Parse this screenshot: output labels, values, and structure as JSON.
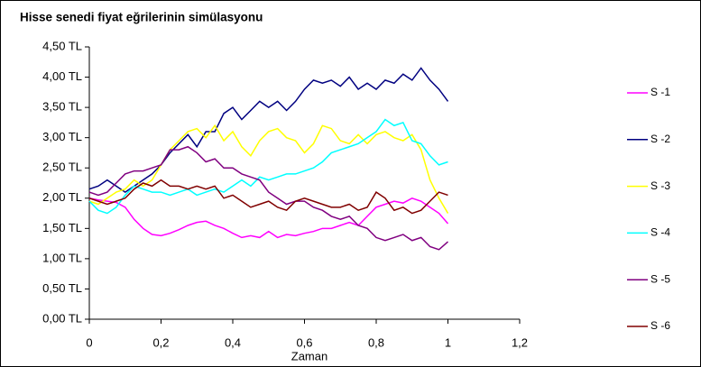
{
  "chart_data": {
    "type": "line",
    "title": "Hisse senedi fiyat eğrilerinin simülasyonu",
    "xlabel": "Zaman",
    "x": [
      0,
      0.025,
      0.05,
      0.075,
      0.1,
      0.125,
      0.15,
      0.175,
      0.2,
      0.225,
      0.25,
      0.275,
      0.3,
      0.325,
      0.35,
      0.375,
      0.4,
      0.425,
      0.45,
      0.475,
      0.5,
      0.525,
      0.55,
      0.575,
      0.6,
      0.625,
      0.65,
      0.675,
      0.7,
      0.725,
      0.75,
      0.775,
      0.8,
      0.825,
      0.85,
      0.875,
      0.9,
      0.925,
      0.95,
      0.975,
      1
    ],
    "series": [
      {
        "name": "S -1",
        "color": "#ff00ff",
        "values": [
          2.0,
          1.97,
          1.95,
          1.93,
          1.85,
          1.65,
          1.5,
          1.4,
          1.38,
          1.42,
          1.48,
          1.55,
          1.6,
          1.62,
          1.55,
          1.5,
          1.42,
          1.35,
          1.38,
          1.35,
          1.45,
          1.35,
          1.4,
          1.38,
          1.42,
          1.45,
          1.5,
          1.5,
          1.55,
          1.6,
          1.55,
          1.7,
          1.85,
          1.9,
          1.95,
          1.92,
          2.0,
          1.95,
          1.85,
          1.75,
          1.58
        ]
      },
      {
        "name": "S -2",
        "color": "#000080",
        "values": [
          2.15,
          2.2,
          2.3,
          2.2,
          2.1,
          2.2,
          2.3,
          2.4,
          2.55,
          2.75,
          2.9,
          3.05,
          2.85,
          3.1,
          3.1,
          3.4,
          3.5,
          3.3,
          3.45,
          3.6,
          3.5,
          3.6,
          3.45,
          3.6,
          3.8,
          3.95,
          3.9,
          3.95,
          3.85,
          4.0,
          3.8,
          3.9,
          3.8,
          3.95,
          3.9,
          4.05,
          3.95,
          4.15,
          3.95,
          3.8,
          3.6
        ]
      },
      {
        "name": "S -3",
        "color": "#ffff00",
        "values": [
          1.95,
          1.9,
          2.0,
          2.1,
          2.15,
          2.3,
          2.2,
          2.3,
          2.55,
          2.8,
          2.95,
          3.1,
          3.15,
          3.0,
          3.2,
          2.95,
          3.1,
          2.85,
          2.7,
          2.95,
          3.1,
          3.15,
          3.0,
          2.95,
          2.75,
          2.9,
          3.2,
          3.15,
          2.95,
          2.9,
          3.05,
          2.9,
          3.05,
          3.1,
          3.0,
          2.95,
          3.05,
          2.8,
          2.3,
          2.0,
          1.75
        ]
      },
      {
        "name": "S -4",
        "color": "#00ffff",
        "values": [
          1.95,
          1.8,
          1.75,
          1.85,
          2.05,
          2.2,
          2.15,
          2.1,
          2.1,
          2.05,
          2.1,
          2.15,
          2.05,
          2.1,
          2.15,
          2.1,
          2.2,
          2.3,
          2.2,
          2.35,
          2.3,
          2.35,
          2.4,
          2.4,
          2.45,
          2.5,
          2.6,
          2.75,
          2.8,
          2.85,
          2.9,
          3.0,
          3.1,
          3.3,
          3.2,
          3.25,
          2.95,
          2.9,
          2.7,
          2.55,
          2.6
        ]
      },
      {
        "name": "S -5",
        "color": "#800080",
        "values": [
          2.1,
          2.05,
          2.1,
          2.25,
          2.4,
          2.45,
          2.45,
          2.5,
          2.55,
          2.8,
          2.8,
          2.85,
          2.75,
          2.6,
          2.65,
          2.5,
          2.5,
          2.4,
          2.35,
          2.3,
          2.1,
          2.0,
          1.9,
          1.95,
          1.95,
          1.85,
          1.8,
          1.7,
          1.65,
          1.7,
          1.55,
          1.5,
          1.35,
          1.3,
          1.35,
          1.4,
          1.3,
          1.35,
          1.2,
          1.15,
          1.28
        ]
      },
      {
        "name": "S -6",
        "color": "#800000",
        "values": [
          2.0,
          1.95,
          1.9,
          1.95,
          2.0,
          2.15,
          2.25,
          2.2,
          2.3,
          2.2,
          2.2,
          2.15,
          2.2,
          2.15,
          2.2,
          2.0,
          2.05,
          1.95,
          1.85,
          1.9,
          1.95,
          1.85,
          1.8,
          1.95,
          2.0,
          1.95,
          1.9,
          1.85,
          1.85,
          1.9,
          1.8,
          1.85,
          2.1,
          2.0,
          1.8,
          1.85,
          1.75,
          1.8,
          1.95,
          2.1,
          2.05
        ]
      }
    ],
    "xlim": [
      0,
      1.2
    ],
    "xticks": [
      0,
      {
        "value": 0.2,
        "label": "0,2"
      },
      {
        "value": 0.4,
        "label": "0,4"
      },
      {
        "value": 0.6,
        "label": "0,6"
      },
      {
        "value": 0.8,
        "label": "0,8"
      },
      1,
      {
        "value": 1.2,
        "label": "1,2"
      }
    ],
    "ylim": [
      0,
      4.5
    ],
    "yticks": [
      {
        "value": 0,
        "label": "0,00 TL"
      },
      {
        "value": 0.5,
        "label": "0,50 TL"
      },
      {
        "value": 1,
        "label": "1,00 TL"
      },
      {
        "value": 1.5,
        "label": "1,50 TL"
      },
      {
        "value": 2,
        "label": "2,00 TL"
      },
      {
        "value": 2.5,
        "label": "2,50 TL"
      },
      {
        "value": 3,
        "label": "3,00 TL"
      },
      {
        "value": 3.5,
        "label": "3,50 TL"
      },
      {
        "value": 4,
        "label": "4,00 TL"
      },
      {
        "value": 4.5,
        "label": "4,50 TL"
      }
    ],
    "legend": "right"
  }
}
